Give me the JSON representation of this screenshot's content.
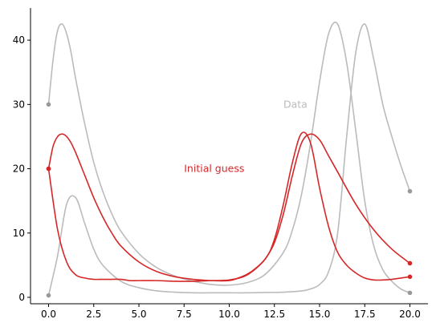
{
  "chart_data": {
    "type": "line",
    "title": "",
    "xlabel": "",
    "ylabel": "",
    "xlim": [
      -1,
      21
    ],
    "ylim": [
      -1,
      45
    ],
    "grid": false,
    "xticks": [
      0.0,
      2.5,
      5.0,
      7.5,
      10.0,
      12.5,
      15.0,
      17.5,
      20.0
    ],
    "xtick_labels": [
      "0.0",
      "2.5",
      "5.0",
      "7.5",
      "10.0",
      "12.5",
      "15.0",
      "17.5",
      "20.0"
    ],
    "yticks": [
      0,
      10,
      20,
      30,
      40
    ],
    "ytick_labels": [
      "0",
      "10",
      "20",
      "30",
      "40"
    ],
    "annotations": [
      {
        "text": "Data",
        "x": 13.0,
        "y": 30.0,
        "color": "#bbbbbb"
      },
      {
        "text": "Initial guess",
        "x": 7.5,
        "y": 20.0,
        "color": "#d62728"
      }
    ],
    "series": [
      {
        "color": "#bbbbbb",
        "x": [
          0,
          0.25,
          0.5,
          0.75,
          1.0,
          1.25,
          1.5,
          2.0,
          2.5,
          3.0,
          3.5,
          4.0,
          5.0,
          6.0,
          7.0,
          8.0,
          9.0,
          10.0,
          11.0,
          12.0,
          13.0,
          13.5,
          14.0,
          14.5,
          15.0,
          15.5,
          16.0,
          16.5,
          17.0,
          17.5,
          18.0,
          18.5,
          19.0,
          19.5,
          20.0
        ],
        "y": [
          30.0,
          37.0,
          41.5,
          42.5,
          41.0,
          38.0,
          34.0,
          27.0,
          21.0,
          16.5,
          13.0,
          10.3,
          6.8,
          4.6,
          3.3,
          2.5,
          2.0,
          1.9,
          2.3,
          3.6,
          7.0,
          10.5,
          16.0,
          24.0,
          33.5,
          41.0,
          42.5,
          36.5,
          26.0,
          15.0,
          8.0,
          4.3,
          2.5,
          1.3,
          0.7
        ]
      },
      {
        "color": "#bbbbbb",
        "x": [
          0,
          0.5,
          1.0,
          1.5,
          2.0,
          2.5,
          3.0,
          4.0,
          5.0,
          6.0,
          7.0,
          8.0,
          9.0,
          10.0,
          11.0,
          12.0,
          13.0,
          14.0,
          14.5,
          15.0,
          15.5,
          16.0,
          16.5,
          17.0,
          17.5,
          18.0,
          18.5,
          19.0,
          19.5,
          20.0
        ],
        "y": [
          0.3,
          6.5,
          14.5,
          15.5,
          11.5,
          7.5,
          5.0,
          2.5,
          1.5,
          1.0,
          0.8,
          0.7,
          0.7,
          0.7,
          0.7,
          0.75,
          0.8,
          1.0,
          1.3,
          2.0,
          4.0,
          10.0,
          25.0,
          38.0,
          42.5,
          37.0,
          30.0,
          25.0,
          20.5,
          16.5
        ]
      },
      {
        "color": "#d62728",
        "x": [
          0,
          0.25,
          0.5,
          0.75,
          1.0,
          1.25,
          1.5,
          2.0,
          2.5,
          3.0,
          3.5,
          4.0,
          5.0,
          6.0,
          7.0,
          8.0,
          9.0,
          10.0,
          10.5,
          11.0,
          11.5,
          12.0,
          12.5,
          13.0,
          13.5,
          14.0,
          14.5,
          15.0,
          15.5,
          16.0,
          17.0,
          18.0,
          19.0,
          20.0
        ],
        "y": [
          20.0,
          23.5,
          25.0,
          25.4,
          25.0,
          24.0,
          22.5,
          19.0,
          15.5,
          12.5,
          10.0,
          8.0,
          5.5,
          4.0,
          3.2,
          2.8,
          2.6,
          2.6,
          3.0,
          3.6,
          4.6,
          6.0,
          8.5,
          13.0,
          19.0,
          24.0,
          25.4,
          24.5,
          22.0,
          19.5,
          14.5,
          10.5,
          7.5,
          5.3
        ]
      },
      {
        "color": "#d62728",
        "x": [
          0,
          0.5,
          1.0,
          1.5,
          2.0,
          2.5,
          3.0,
          3.5,
          4.0,
          4.5,
          5.0,
          6.0,
          7.0,
          8.0,
          9.0,
          10.0,
          11.0,
          12.0,
          12.5,
          13.0,
          13.5,
          14.0,
          14.5,
          15.0,
          15.5,
          16.0,
          16.5,
          17.0,
          17.5,
          18.0,
          18.5,
          19.0,
          19.5,
          20.0
        ],
        "y": [
          20.0,
          10.5,
          5.5,
          3.5,
          3.0,
          2.8,
          2.8,
          2.8,
          2.8,
          2.6,
          2.6,
          2.6,
          2.5,
          2.5,
          2.6,
          2.7,
          3.5,
          6.0,
          9.0,
          14.5,
          21.0,
          25.5,
          24.0,
          17.0,
          11.0,
          7.0,
          5.0,
          3.8,
          3.0,
          2.7,
          2.7,
          2.8,
          3.0,
          3.2
        ]
      }
    ]
  }
}
